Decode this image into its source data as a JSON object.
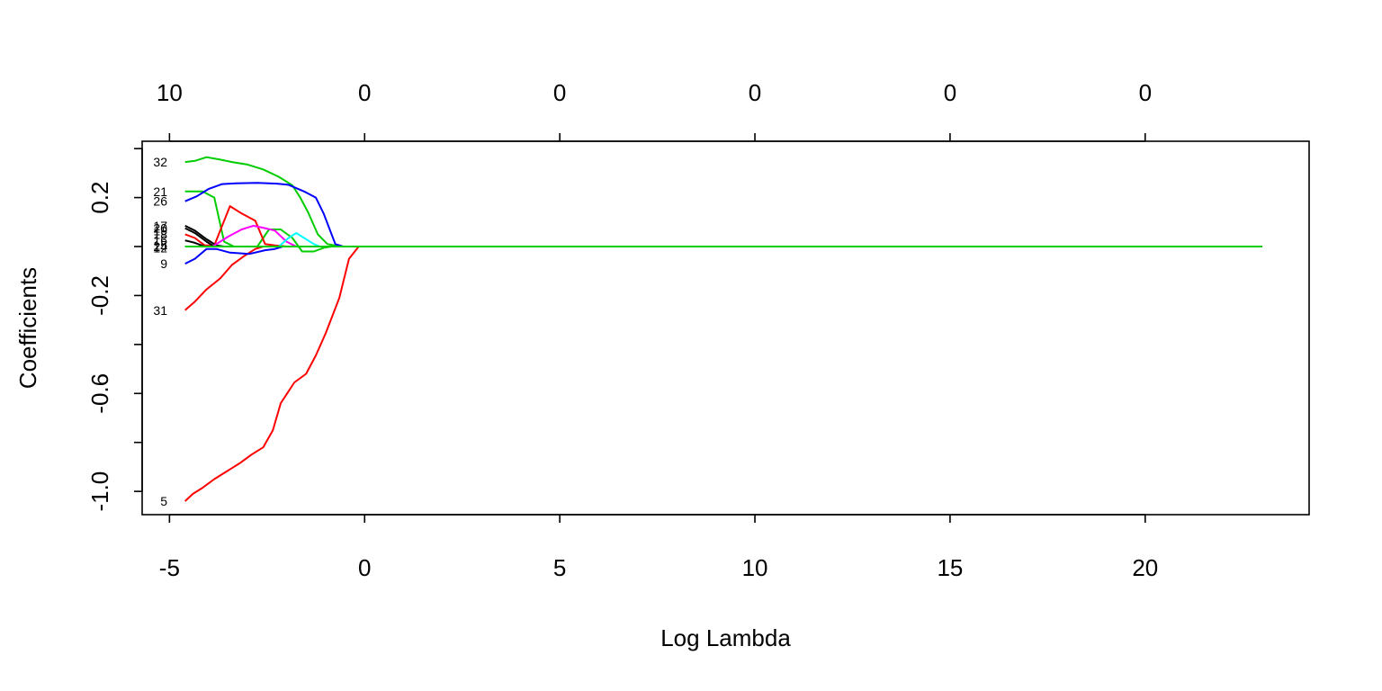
{
  "chart_data": {
    "type": "line",
    "title": "",
    "xlabel": "Log Lambda",
    "ylabel": "Coefficients",
    "xlim": [
      -5.7,
      24.2
    ],
    "ylim": [
      -1.095,
      0.43
    ],
    "x_ticks": [
      -5,
      0,
      5,
      10,
      15,
      20
    ],
    "y_ticks": [
      -1.0,
      -0.6,
      -0.2,
      0.2
    ],
    "y_tick_labels": [
      "-1.0",
      "-0.6",
      "-0.2",
      "0.2"
    ],
    "y_minor_ticks": [
      -0.8,
      -0.4,
      0.0,
      0.4
    ],
    "top_axis": {
      "ticks": [
        -5,
        0,
        5,
        10,
        15,
        20
      ],
      "labels": [
        "10",
        "0",
        "0",
        "0",
        "0",
        "0"
      ]
    },
    "grid": false,
    "legend": "none",
    "x_end": 23.0,
    "path_labels": [
      {
        "text": "32",
        "y": 0.345
      },
      {
        "text": "21",
        "y": 0.225
      },
      {
        "text": "26",
        "y": 0.185
      },
      {
        "text": "17",
        "y": 0.085
      },
      {
        "text": "20",
        "y": 0.075
      },
      {
        "text": "19",
        "y": 0.065
      },
      {
        "text": "18",
        "y": 0.05
      },
      {
        "text": "16",
        "y": 0.025
      },
      {
        "text": "15",
        "y": 0.005
      },
      {
        "text": "24",
        "y": 0.0
      },
      {
        "text": "12",
        "y": -0.005
      },
      {
        "text": "9",
        "y": -0.07
      },
      {
        "text": "31",
        "y": -0.26
      },
      {
        "text": "5",
        "y": -1.04
      }
    ],
    "series": [
      {
        "color": "#ff0000",
        "points": [
          [
            -4.6,
            -1.04
          ],
          [
            -4.4,
            -1.01
          ],
          [
            -4.15,
            -0.985
          ],
          [
            -3.85,
            -0.95
          ],
          [
            -3.5,
            -0.915
          ],
          [
            -3.2,
            -0.885
          ],
          [
            -2.9,
            -0.85
          ],
          [
            -2.6,
            -0.82
          ],
          [
            -2.35,
            -0.75
          ],
          [
            -2.15,
            -0.64
          ],
          [
            -1.8,
            -0.555
          ],
          [
            -1.5,
            -0.52
          ],
          [
            -1.25,
            -0.445
          ],
          [
            -1.0,
            -0.355
          ],
          [
            -0.65,
            -0.21
          ],
          [
            -0.4,
            -0.05
          ],
          [
            -0.15,
            0.0
          ],
          [
            23.0,
            0.0
          ]
        ]
      },
      {
        "color": "#ff0000",
        "points": [
          [
            -4.6,
            -0.26
          ],
          [
            -4.35,
            -0.225
          ],
          [
            -4.05,
            -0.175
          ],
          [
            -3.7,
            -0.13
          ],
          [
            -3.4,
            -0.075
          ],
          [
            -3.1,
            -0.04
          ],
          [
            -2.8,
            -0.01
          ],
          [
            -2.6,
            0.0
          ],
          [
            23.0,
            0.0
          ]
        ]
      },
      {
        "color": "#00cd00",
        "points": [
          [
            -4.6,
            0.345
          ],
          [
            -4.35,
            0.35
          ],
          [
            -4.05,
            0.365
          ],
          [
            -3.7,
            0.355
          ],
          [
            -3.4,
            0.345
          ],
          [
            -3.0,
            0.335
          ],
          [
            -2.6,
            0.315
          ],
          [
            -2.2,
            0.285
          ],
          [
            -1.85,
            0.25
          ],
          [
            -1.65,
            0.2
          ],
          [
            -1.45,
            0.14
          ],
          [
            -1.2,
            0.05
          ],
          [
            -0.95,
            0.01
          ],
          [
            -0.6,
            0.0
          ],
          [
            23.0,
            0.0
          ]
        ]
      },
      {
        "color": "#00cd00",
        "points": [
          [
            -4.6,
            0.225
          ],
          [
            -4.15,
            0.225
          ],
          [
            -3.85,
            0.2
          ],
          [
            -3.6,
            0.02
          ],
          [
            -3.35,
            0.0
          ],
          [
            -2.75,
            0.0
          ],
          [
            -2.45,
            0.07
          ],
          [
            -2.15,
            0.07
          ],
          [
            -1.85,
            0.035
          ],
          [
            -1.6,
            -0.02
          ],
          [
            -1.3,
            -0.02
          ],
          [
            -1.05,
            -0.005
          ],
          [
            -0.85,
            0.0
          ],
          [
            23.0,
            0.0
          ]
        ]
      },
      {
        "color": "#0000ff",
        "points": [
          [
            -4.6,
            0.185
          ],
          [
            -4.3,
            0.205
          ],
          [
            -4.0,
            0.235
          ],
          [
            -3.65,
            0.255
          ],
          [
            -3.3,
            0.258
          ],
          [
            -2.75,
            0.26
          ],
          [
            -2.25,
            0.257
          ],
          [
            -1.95,
            0.252
          ],
          [
            -1.55,
            0.225
          ],
          [
            -1.25,
            0.2
          ],
          [
            -1.05,
            0.135
          ],
          [
            -0.75,
            0.01
          ],
          [
            -0.55,
            0.0
          ],
          [
            23.0,
            0.0
          ]
        ]
      },
      {
        "color": "#0000ff",
        "points": [
          [
            -4.6,
            -0.07
          ],
          [
            -4.35,
            -0.05
          ],
          [
            -4.05,
            -0.01
          ],
          [
            -3.8,
            -0.01
          ],
          [
            -3.45,
            -0.025
          ],
          [
            -2.95,
            -0.03
          ],
          [
            -2.55,
            -0.015
          ],
          [
            -2.3,
            -0.01
          ],
          [
            -2.1,
            0.0
          ],
          [
            23.0,
            0.0
          ]
        ]
      },
      {
        "color": "#ff0000",
        "points": [
          [
            -4.6,
            0.05
          ],
          [
            -4.35,
            0.035
          ],
          [
            -4.1,
            0.005
          ],
          [
            -3.85,
            0.005
          ],
          [
            -3.45,
            0.165
          ],
          [
            -3.15,
            0.135
          ],
          [
            -2.8,
            0.105
          ],
          [
            -2.55,
            0.01
          ],
          [
            -2.3,
            0.005
          ],
          [
            -2.0,
            0.0
          ],
          [
            23.0,
            0.0
          ]
        ]
      },
      {
        "color": "#000000",
        "points": [
          [
            -4.6,
            0.085
          ],
          [
            -4.35,
            0.065
          ],
          [
            -4.05,
            0.03
          ],
          [
            -3.8,
            0.005
          ],
          [
            -3.6,
            0.0
          ],
          [
            23.0,
            0.0
          ]
        ]
      },
      {
        "color": "#000000",
        "points": [
          [
            -4.6,
            0.075
          ],
          [
            -4.35,
            0.055
          ],
          [
            -4.05,
            0.02
          ],
          [
            -3.85,
            0.0
          ],
          [
            23.0,
            0.0
          ]
        ]
      },
      {
        "color": "#000000",
        "points": [
          [
            -4.6,
            0.025
          ],
          [
            -4.35,
            0.015
          ],
          [
            -4.1,
            0.0
          ],
          [
            23.0,
            0.0
          ]
        ]
      },
      {
        "color": "#ff00ff",
        "points": [
          [
            -4.6,
            0.0
          ],
          [
            -3.9,
            0.0
          ],
          [
            -3.5,
            0.04
          ],
          [
            -3.15,
            0.07
          ],
          [
            -2.85,
            0.085
          ],
          [
            -2.55,
            0.075
          ],
          [
            -2.3,
            0.065
          ],
          [
            -2.0,
            0.02
          ],
          [
            -1.75,
            0.0
          ],
          [
            23.0,
            0.0
          ]
        ]
      },
      {
        "color": "#00ffff",
        "points": [
          [
            -4.6,
            0.0
          ],
          [
            -2.2,
            0.0
          ],
          [
            -1.95,
            0.035
          ],
          [
            -1.75,
            0.055
          ],
          [
            -1.5,
            0.03
          ],
          [
            -1.3,
            0.01
          ],
          [
            -1.15,
            0.0
          ],
          [
            23.0,
            0.0
          ]
        ]
      },
      {
        "color": "#00cd00",
        "points": [
          [
            -4.6,
            0.0
          ],
          [
            23.0,
            0.0
          ]
        ]
      }
    ]
  }
}
